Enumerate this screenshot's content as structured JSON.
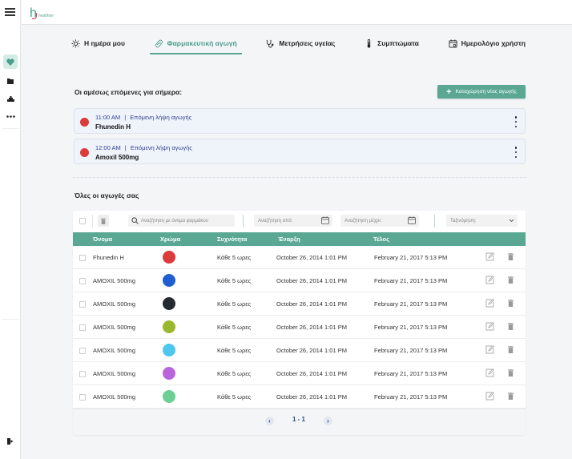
{
  "app": {
    "logo_text": "healthier"
  },
  "sidebar": {
    "items": [
      {
        "name": "heart",
        "active": true
      },
      {
        "name": "folder",
        "active": false
      },
      {
        "name": "pill-tray",
        "active": false
      },
      {
        "name": "more",
        "active": false
      }
    ],
    "logout": "logout"
  },
  "tabs": [
    {
      "label": "Η ημέρα μου",
      "icon": "sun-icon",
      "active": false
    },
    {
      "label": "Φαρμακευτική αγωγή",
      "icon": "pill-icon",
      "active": true
    },
    {
      "label": "Μετρήσεις υγείας",
      "icon": "stethoscope-icon",
      "active": false
    },
    {
      "label": "Συμπτώματα",
      "icon": "thermometer-icon",
      "active": false
    },
    {
      "label": "Ημερολόγιο χρήστη",
      "icon": "calendar-icon",
      "active": false
    }
  ],
  "upcoming": {
    "title": "Οι αμέσως επόμενες για σήμερα:",
    "add_button": "Καταχώρηση νέας αγωγής",
    "items": [
      {
        "time": "11:00 AM",
        "separator": "|",
        "subtitle": "Επόμενη λήψη αγωγής",
        "name": "Fhunedin H",
        "color": "#dc3b3b"
      },
      {
        "time": "12:00 AM",
        "separator": "|",
        "subtitle": "Επόμενη λήψη αγωγής",
        "name": "Amoxil 500mg",
        "color": "#dc3b3b"
      }
    ]
  },
  "all": {
    "title": "Όλες οι αγωγές σας",
    "search_placeholder": "Αναζήτηση με όνομα φαρμάκου",
    "from_placeholder": "Αναζήτηση από:",
    "to_placeholder": "Αναζήτηση μέχρι:",
    "sort_placeholder": "Ταξινόμηση:",
    "columns": [
      "Όνομα",
      "Χρώμα",
      "Συχνότητα",
      "Έναρξη",
      "Τέλος"
    ],
    "rows": [
      {
        "name": "Fhunedin H",
        "color": "#dc3b3b",
        "frequency": "Κάθε 5 ωρες",
        "start": "October 26, 2014 1:01 PM",
        "end": "February 21, 2017 5:13 PM"
      },
      {
        "name": "AMOXIL 500mg",
        "color": "#1f5fd1",
        "frequency": "Κάθε 5 ωρες",
        "start": "October 26, 2014 1:01 PM",
        "end": "February 21, 2017 5:13 PM"
      },
      {
        "name": "AMOXIL 500mg",
        "color": "#242a30",
        "frequency": "Κάθε 5 ωρες",
        "start": "October 26, 2014 1:01 PM",
        "end": "February 21, 2017 5:13 PM"
      },
      {
        "name": "AMOXIL 500mg",
        "color": "#9ab82d",
        "frequency": "Κάθε 5 ωρες",
        "start": "October 26, 2014 1:01 PM",
        "end": "February 21, 2017 5:13 PM"
      },
      {
        "name": "AMOXIL 500mg",
        "color": "#4fc6ee",
        "frequency": "Κάθε 5 ωρες",
        "start": "October 26, 2014 1:01 PM",
        "end": "February 21, 2017 5:13 PM"
      },
      {
        "name": "AMOXIL 500mg",
        "color": "#b966dc",
        "frequency": "Κάθε 5 ωρες",
        "start": "October 26, 2014 1:01 PM",
        "end": "February 21, 2017 5:13 PM"
      },
      {
        "name": "AMOXIL 500mg",
        "color": "#6ccf94",
        "frequency": "Κάθε 5 ωρες",
        "start": "October 26, 2014 1:01 PM",
        "end": "February 21, 2017 5:13 PM"
      }
    ],
    "pagination": {
      "label": "1 - 1",
      "prev": "‹",
      "next": "›"
    }
  },
  "colors": {
    "accent": "#5aa894",
    "card_bg": "#eff4fb",
    "nav_text": "#2d3f8f"
  }
}
